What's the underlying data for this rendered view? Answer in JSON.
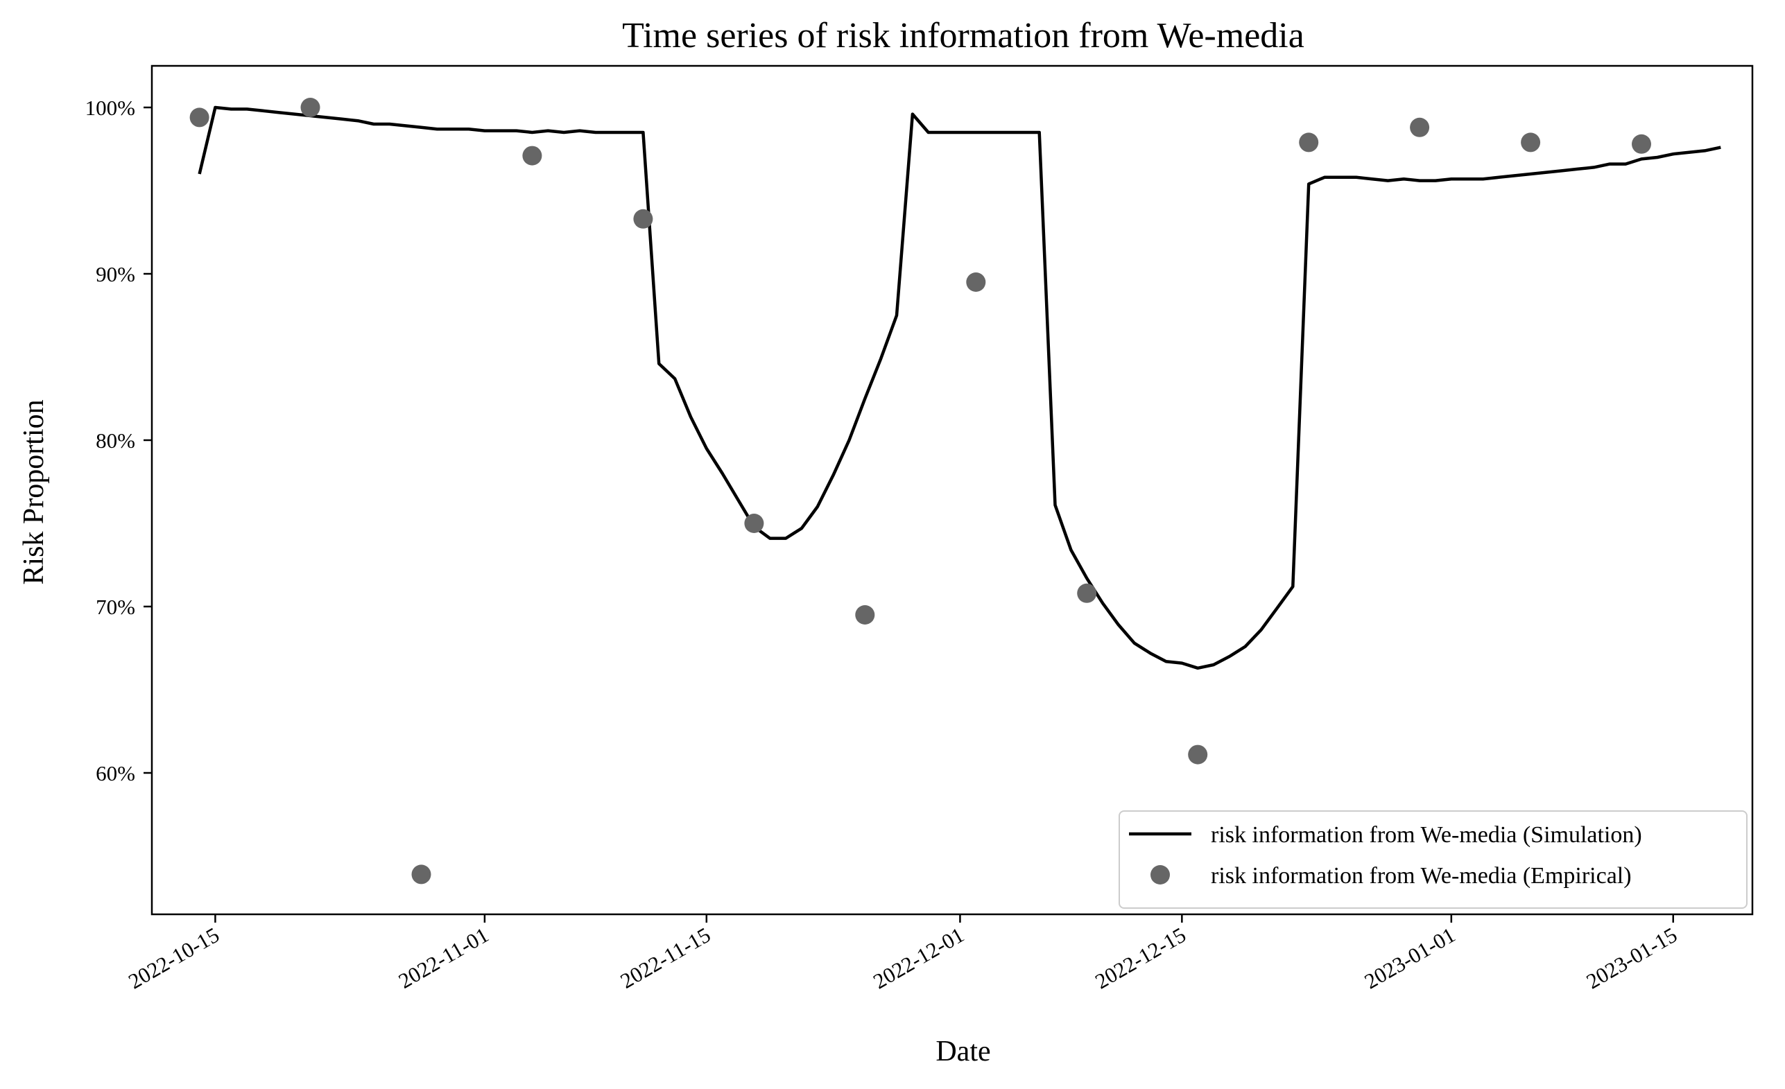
{
  "chart_data": {
    "type": "line",
    "title": "Time series of risk information from We-media",
    "xlabel": "Date",
    "ylabel": "Risk Proportion",
    "x_type": "date",
    "xlim": [
      "2022-10-11",
      "2023-01-20"
    ],
    "ylim": [
      0.515,
      1.025
    ],
    "x_ticks": [
      "2022-10-15",
      "2022-11-01",
      "2022-11-15",
      "2022-12-01",
      "2022-12-15",
      "2023-01-01",
      "2023-01-15"
    ],
    "y_ticks": [
      0.6,
      0.7,
      0.8,
      0.9,
      1.0
    ],
    "y_tick_labels": [
      "60%",
      "70%",
      "80%",
      "90%",
      "100%"
    ],
    "grid": false,
    "legend_position": "lower-right",
    "series": [
      {
        "name": "risk information from We-media (Simulation)",
        "kind": "line",
        "color": "#000000",
        "points": [
          [
            "2022-10-14",
            0.96
          ],
          [
            "2022-10-15",
            1.0
          ],
          [
            "2022-10-16",
            0.999
          ],
          [
            "2022-10-17",
            0.999
          ],
          [
            "2022-10-18",
            0.998
          ],
          [
            "2022-10-19",
            0.997
          ],
          [
            "2022-10-20",
            0.996
          ],
          [
            "2022-10-21",
            0.995
          ],
          [
            "2022-10-22",
            0.994
          ],
          [
            "2022-10-23",
            0.993
          ],
          [
            "2022-10-24",
            0.992
          ],
          [
            "2022-10-25",
            0.99
          ],
          [
            "2022-10-26",
            0.99
          ],
          [
            "2022-10-27",
            0.989
          ],
          [
            "2022-10-28",
            0.988
          ],
          [
            "2022-10-29",
            0.987
          ],
          [
            "2022-10-30",
            0.987
          ],
          [
            "2022-10-31",
            0.987
          ],
          [
            "2022-11-01",
            0.986
          ],
          [
            "2022-11-02",
            0.986
          ],
          [
            "2022-11-03",
            0.986
          ],
          [
            "2022-11-04",
            0.985
          ],
          [
            "2022-11-05",
            0.986
          ],
          [
            "2022-11-06",
            0.985
          ],
          [
            "2022-11-07",
            0.986
          ],
          [
            "2022-11-08",
            0.985
          ],
          [
            "2022-11-09",
            0.985
          ],
          [
            "2022-11-10",
            0.985
          ],
          [
            "2022-11-11",
            0.985
          ],
          [
            "2022-11-12",
            0.846
          ],
          [
            "2022-11-13",
            0.837
          ],
          [
            "2022-11-14",
            0.814
          ],
          [
            "2022-11-15",
            0.795
          ],
          [
            "2022-11-16",
            0.78
          ],
          [
            "2022-11-17",
            0.764
          ],
          [
            "2022-11-18",
            0.748
          ],
          [
            "2022-11-19",
            0.741
          ],
          [
            "2022-11-20",
            0.741
          ],
          [
            "2022-11-21",
            0.747
          ],
          [
            "2022-11-22",
            0.76
          ],
          [
            "2022-11-23",
            0.779
          ],
          [
            "2022-11-24",
            0.8
          ],
          [
            "2022-11-25",
            0.825
          ],
          [
            "2022-11-26",
            0.849
          ],
          [
            "2022-11-27",
            0.875
          ],
          [
            "2022-11-28",
            0.996
          ],
          [
            "2022-11-29",
            0.985
          ],
          [
            "2022-11-30",
            0.985
          ],
          [
            "2022-12-01",
            0.985
          ],
          [
            "2022-12-02",
            0.985
          ],
          [
            "2022-12-03",
            0.985
          ],
          [
            "2022-12-04",
            0.985
          ],
          [
            "2022-12-05",
            0.985
          ],
          [
            "2022-12-06",
            0.985
          ],
          [
            "2022-12-07",
            0.761
          ],
          [
            "2022-12-08",
            0.734
          ],
          [
            "2022-12-09",
            0.717
          ],
          [
            "2022-12-10",
            0.702
          ],
          [
            "2022-12-11",
            0.689
          ],
          [
            "2022-12-12",
            0.678
          ],
          [
            "2022-12-13",
            0.672
          ],
          [
            "2022-12-14",
            0.667
          ],
          [
            "2022-12-15",
            0.666
          ],
          [
            "2022-12-16",
            0.663
          ],
          [
            "2022-12-17",
            0.665
          ],
          [
            "2022-12-18",
            0.67
          ],
          [
            "2022-12-19",
            0.676
          ],
          [
            "2022-12-20",
            0.686
          ],
          [
            "2022-12-21",
            0.699
          ],
          [
            "2022-12-22",
            0.712
          ],
          [
            "2022-12-23",
            0.954
          ],
          [
            "2022-12-24",
            0.958
          ],
          [
            "2022-12-25",
            0.958
          ],
          [
            "2022-12-26",
            0.958
          ],
          [
            "2022-12-27",
            0.957
          ],
          [
            "2022-12-28",
            0.956
          ],
          [
            "2022-12-29",
            0.957
          ],
          [
            "2022-12-30",
            0.956
          ],
          [
            "2022-12-31",
            0.956
          ],
          [
            "2023-01-01",
            0.957
          ],
          [
            "2023-01-02",
            0.957
          ],
          [
            "2023-01-03",
            0.957
          ],
          [
            "2023-01-04",
            0.958
          ],
          [
            "2023-01-05",
            0.959
          ],
          [
            "2023-01-06",
            0.96
          ],
          [
            "2023-01-07",
            0.961
          ],
          [
            "2023-01-08",
            0.962
          ],
          [
            "2023-01-09",
            0.963
          ],
          [
            "2023-01-10",
            0.964
          ],
          [
            "2023-01-11",
            0.966
          ],
          [
            "2023-01-12",
            0.966
          ],
          [
            "2023-01-13",
            0.969
          ],
          [
            "2023-01-14",
            0.97
          ],
          [
            "2023-01-15",
            0.972
          ],
          [
            "2023-01-16",
            0.973
          ],
          [
            "2023-01-17",
            0.974
          ],
          [
            "2023-01-18",
            0.976
          ]
        ]
      },
      {
        "name": "risk information from We-media (Empirical)",
        "kind": "scatter",
        "color": "#666666",
        "points": [
          [
            "2022-10-14",
            0.994
          ],
          [
            "2022-10-21",
            1.0
          ],
          [
            "2022-10-28",
            0.539
          ],
          [
            "2022-11-04",
            0.971
          ],
          [
            "2022-11-11",
            0.933
          ],
          [
            "2022-11-18",
            0.75
          ],
          [
            "2022-11-25",
            0.695
          ],
          [
            "2022-12-02",
            0.895
          ],
          [
            "2022-12-09",
            0.708
          ],
          [
            "2022-12-16",
            0.611
          ],
          [
            "2022-12-23",
            0.979
          ],
          [
            "2022-12-30",
            0.988
          ],
          [
            "2023-01-06",
            0.979
          ],
          [
            "2023-01-13",
            0.978
          ]
        ]
      }
    ]
  }
}
